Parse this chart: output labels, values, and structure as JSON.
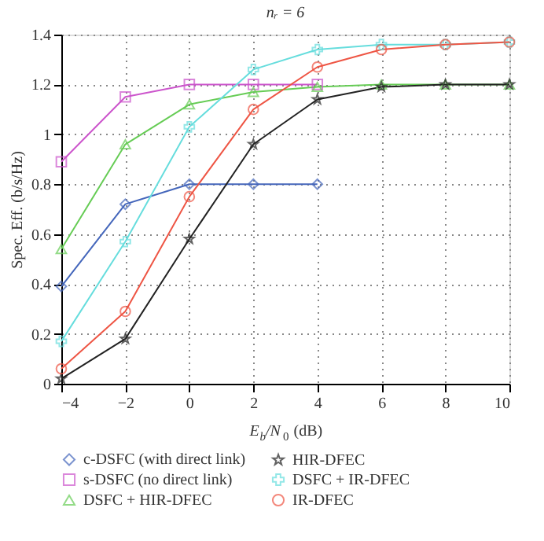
{
  "chart_data": {
    "type": "line",
    "title": "nᵣ = 6",
    "xlabel": "E$_{b}$/N$_{0}$ (dB)",
    "ylabel": "Spec. Eff. (b/s/Hz)",
    "x": [
      -4,
      -2,
      0,
      2,
      4,
      6,
      8,
      10
    ],
    "series": [
      {
        "name": "c-DSFC (with direct link)",
        "color": "#4466bb",
        "marker": "diamond",
        "values": [
          0.39,
          0.72,
          0.8,
          0.8,
          0.8,
          null,
          null,
          null
        ]
      },
      {
        "name": "s-DSFC (no direct link)",
        "color": "#cc55cc",
        "marker": "square",
        "values": [
          0.89,
          1.15,
          1.2,
          1.2,
          1.2,
          null,
          null,
          null
        ]
      },
      {
        "name": "DSFC + HIR-DFEC",
        "color": "#66cc55",
        "marker": "triangle",
        "values": [
          0.54,
          0.96,
          1.12,
          1.17,
          1.19,
          1.2,
          1.2,
          1.2
        ]
      },
      {
        "name": "HIR-DFEC",
        "color": "#222222",
        "marker": "star",
        "values": [
          0.02,
          0.18,
          0.58,
          0.96,
          1.14,
          1.19,
          1.2,
          1.2
        ]
      },
      {
        "name": "DSFC + IR-DFEC",
        "color": "#66dddd",
        "marker": "cross",
        "values": [
          0.17,
          0.57,
          1.03,
          1.26,
          1.34,
          1.36,
          1.36,
          1.37
        ]
      },
      {
        "name": "IR-DFEC",
        "color": "#ee5544",
        "marker": "circle",
        "values": [
          0.06,
          0.29,
          0.75,
          1.1,
          1.27,
          1.34,
          1.36,
          1.37
        ]
      }
    ],
    "xlim": [
      -4,
      10
    ],
    "xticks": [
      -4,
      -2,
      0,
      2,
      4,
      6,
      8,
      10
    ],
    "ylim": [
      0,
      1.4
    ],
    "yticks": [
      0,
      0.2,
      0.4,
      0.6,
      0.8,
      1,
      1.2,
      1.4
    ],
    "grid": true,
    "legend": "bottom",
    "line_style": "solid"
  }
}
